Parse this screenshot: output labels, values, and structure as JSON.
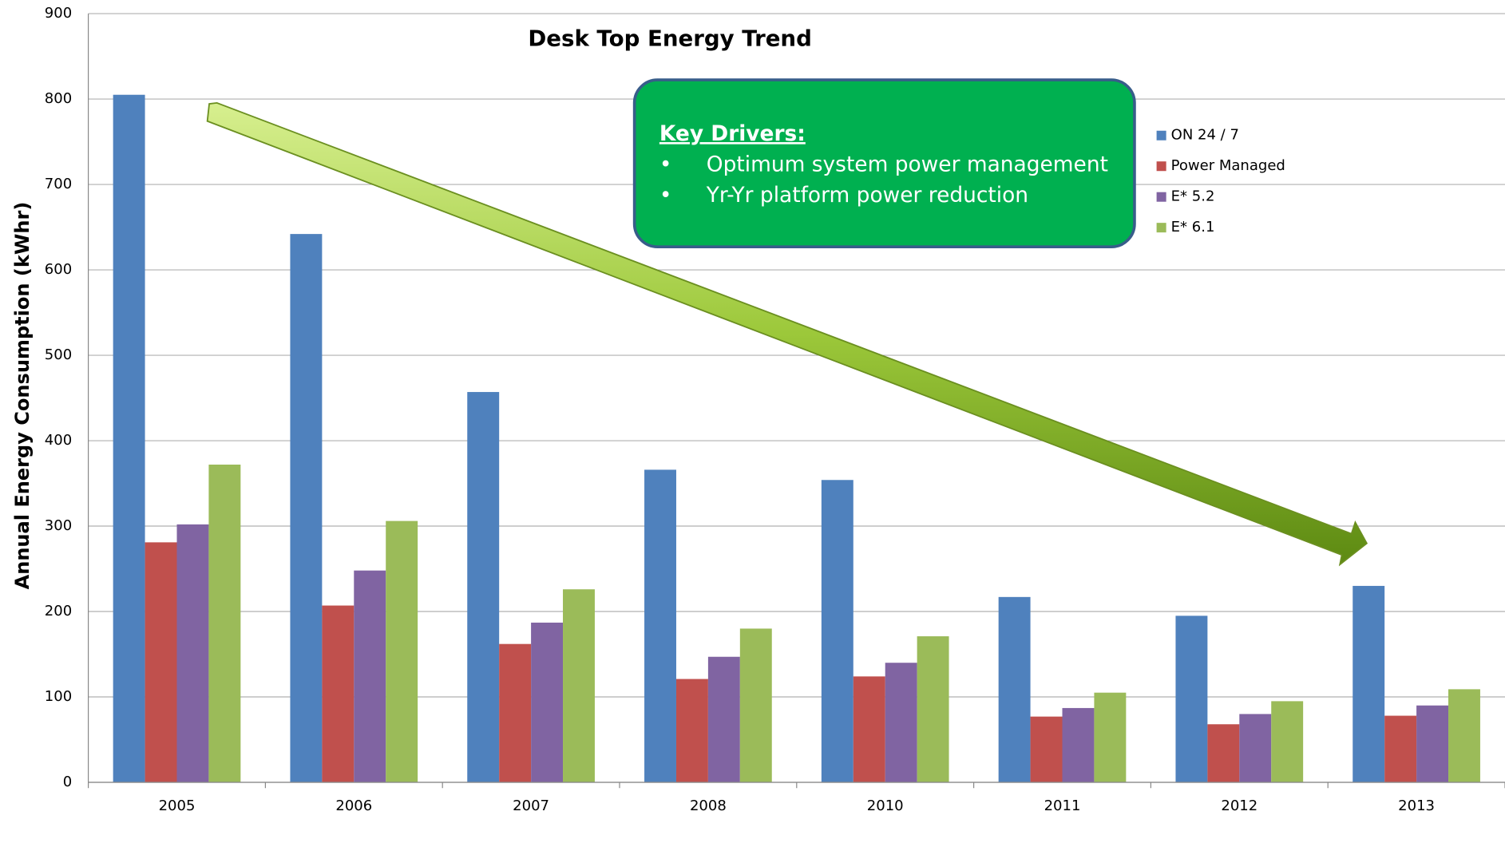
{
  "chart_data": {
    "type": "bar",
    "title": "Desk Top Energy Trend",
    "ylabel": "Annual Energy Consumption (kWhr)",
    "categories": [
      "2005",
      "2006",
      "2007",
      "2008",
      "2010",
      "2011",
      "2012",
      "2013"
    ],
    "series": [
      {
        "name": "ON 24 / 7",
        "color": "#4f81bd",
        "values": [
          805,
          642,
          457,
          366,
          354,
          217,
          195,
          230
        ]
      },
      {
        "name": "Power Managed",
        "color": "#c0504d",
        "values": [
          281,
          207,
          162,
          121,
          124,
          77,
          68,
          78
        ]
      },
      {
        "name": "E* 5.2",
        "color": "#8064a2",
        "values": [
          302,
          248,
          187,
          147,
          140,
          87,
          80,
          90
        ]
      },
      {
        "name": "E* 6.1",
        "color": "#9bbb59",
        "values": [
          372,
          306,
          226,
          180,
          171,
          105,
          95,
          109
        ]
      }
    ],
    "ylim": [
      0,
      900
    ],
    "yticks": [
      0,
      100,
      200,
      300,
      400,
      500,
      600,
      700,
      800,
      900
    ],
    "grid": true,
    "legend": "right",
    "annotation": {
      "title": "Key Drivers:",
      "items": [
        "Optimum system power management",
        "Yr-Yr platform power reduction"
      ]
    }
  }
}
